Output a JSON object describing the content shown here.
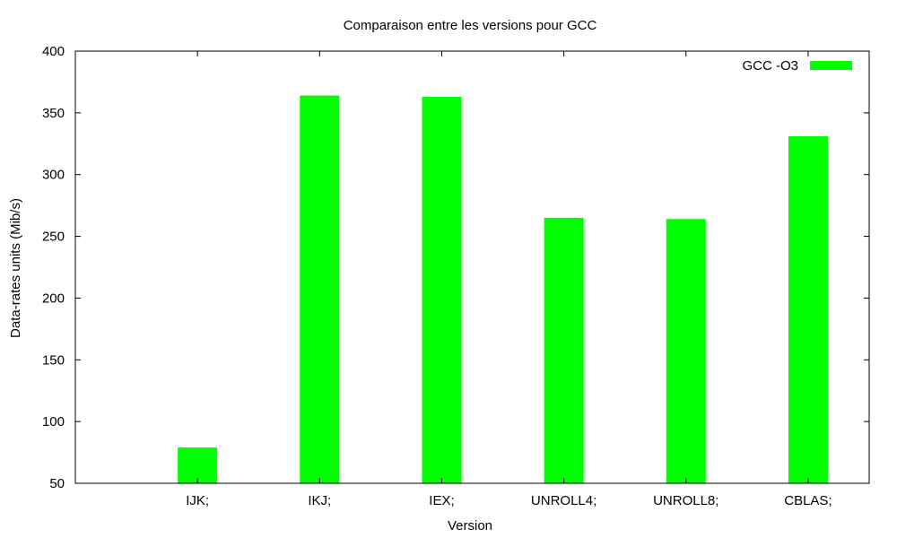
{
  "chart_data": {
    "type": "bar",
    "title": "Comparaison entre les versions pour GCC",
    "xlabel": "Version",
    "ylabel": "Data-rates units (Mib/s)",
    "categories": [
      "IJK;",
      "IKJ;",
      "IEX;",
      "UNROLL4;",
      "UNROLL8;",
      "CBLAS;"
    ],
    "series": [
      {
        "name": "GCC -O3",
        "color": "#00ff00",
        "values": [
          79,
          364,
          363,
          265,
          264,
          331
        ]
      }
    ],
    "ylim": [
      50,
      400
    ],
    "yticks": [
      50,
      100,
      150,
      200,
      250,
      300,
      350,
      400
    ],
    "xlim": [
      -0.5,
      6.0
    ],
    "grid": false,
    "legend_position": "top-right"
  }
}
